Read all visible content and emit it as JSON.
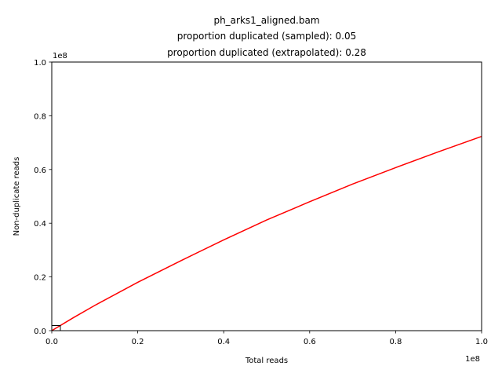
{
  "chart_data": {
    "type": "line",
    "title_lines": [
      "ph_arks1_aligned.bam",
      "proportion duplicated (sampled): 0.05",
      "proportion duplicated (extrapolated): 0.28"
    ],
    "xlabel": "Total reads",
    "ylabel": "Non-duplicate reads",
    "x_offset_text": "1e8",
    "y_offset_text": "1e8",
    "xlim": [
      0,
      100000000
    ],
    "ylim": [
      0,
      100000000
    ],
    "x_ticks": [
      0,
      20000000,
      40000000,
      60000000,
      80000000,
      100000000
    ],
    "x_tick_labels": [
      "0.0",
      "0.2",
      "0.4",
      "0.6",
      "0.8",
      "1.0"
    ],
    "y_ticks": [
      0,
      20000000,
      40000000,
      60000000,
      80000000,
      100000000
    ],
    "y_tick_labels": [
      "0.0",
      "0.2",
      "0.4",
      "0.6",
      "0.8",
      "1.0"
    ],
    "grid": false,
    "series": [
      {
        "color": "#ff0000",
        "x": [
          0,
          5000000,
          10000000,
          20000000,
          30000000,
          40000000,
          50000000,
          60000000,
          70000000,
          80000000,
          90000000,
          100000000
        ],
        "y": [
          0,
          4800000,
          9400000,
          18000000,
          26000000,
          33800000,
          41200000,
          48000000,
          54600000,
          60700000,
          66600000,
          72300000
        ]
      }
    ],
    "sample_box": {
      "x": [
        0,
        2000000
      ],
      "y": [
        0,
        1900000
      ]
    }
  }
}
